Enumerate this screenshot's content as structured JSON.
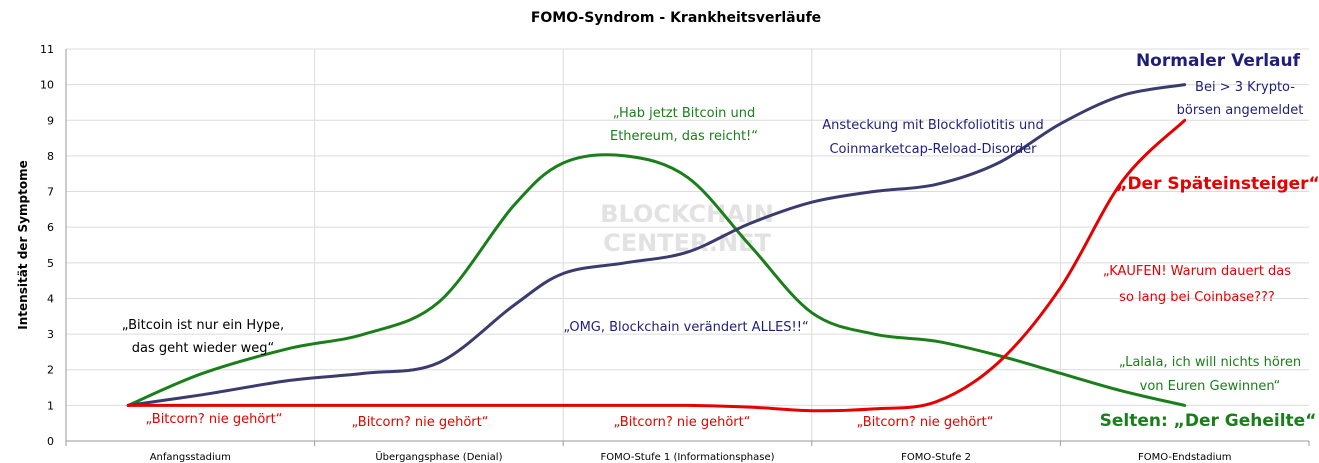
{
  "chart_data": {
    "type": "line",
    "title": "FOMO-Syndrom - Krankheitsverläufe",
    "xlabel": "",
    "ylabel": "Intensität der Symptome",
    "ylim": [
      0,
      11
    ],
    "yticks": [
      0,
      1,
      2,
      3,
      4,
      5,
      6,
      7,
      8,
      9,
      10,
      11
    ],
    "categories": [
      "Anfangsstadium",
      "Übergangsphase (Denial)",
      "FOMO-Stufe 1 (Informationsphase)",
      "FOMO-Stufe 2",
      "FOMO-Endstadium"
    ],
    "grid": true,
    "series": [
      {
        "color": "#1a7f1a",
        "points": [
          [
            0.25,
            1
          ],
          [
            0.55,
            1.9
          ],
          [
            0.9,
            2.6
          ],
          [
            1.2,
            3
          ],
          [
            1.5,
            3.9
          ],
          [
            1.8,
            6.6
          ],
          [
            2.0,
            7.8
          ],
          [
            2.25,
            8
          ],
          [
            2.5,
            7.4
          ],
          [
            2.75,
            5.5
          ],
          [
            3.0,
            3.6
          ],
          [
            3.25,
            3
          ],
          [
            3.5,
            2.8
          ],
          [
            3.75,
            2.4
          ],
          [
            4.0,
            1.9
          ],
          [
            4.25,
            1.4
          ],
          [
            4.5,
            1
          ]
        ]
      },
      {
        "color": "#3b3b6e",
        "points": [
          [
            0.25,
            1
          ],
          [
            0.55,
            1.3
          ],
          [
            0.9,
            1.7
          ],
          [
            1.2,
            1.9
          ],
          [
            1.5,
            2.2
          ],
          [
            1.8,
            3.8
          ],
          [
            2.0,
            4.7
          ],
          [
            2.25,
            5
          ],
          [
            2.5,
            5.3
          ],
          [
            2.75,
            6.1
          ],
          [
            3.0,
            6.7
          ],
          [
            3.25,
            7
          ],
          [
            3.5,
            7.2
          ],
          [
            3.75,
            7.8
          ],
          [
            4.0,
            8.9
          ],
          [
            4.25,
            9.7
          ],
          [
            4.5,
            10
          ]
        ]
      },
      {
        "color": "#e60000",
        "points": [
          [
            0.25,
            1
          ],
          [
            1.2,
            1
          ],
          [
            2.0,
            1
          ],
          [
            2.5,
            1
          ],
          [
            2.75,
            0.95
          ],
          [
            3.0,
            0.85
          ],
          [
            3.25,
            0.9
          ],
          [
            3.5,
            1.1
          ],
          [
            3.75,
            2.2
          ],
          [
            4.0,
            4.3
          ],
          [
            4.25,
            7.3
          ],
          [
            4.5,
            9
          ]
        ]
      }
    ],
    "annotations": [
      {
        "text": "Normaler Verlauf",
        "color": "#1f1f7a",
        "bold": true
      },
      {
        "text": "Bei > 3 Krypto-",
        "color": "#1f1f7a"
      },
      {
        "text": "börsen angemeldet",
        "color": "#1f1f7a"
      },
      {
        "text": "„Hab jetzt Bitcoin und",
        "color": "#1a7f1a"
      },
      {
        "text": "Ethereum, das reicht!“",
        "color": "#1a7f1a"
      },
      {
        "text": "Ansteckung mit Blockfoliotitis und",
        "color": "#1f1f7a"
      },
      {
        "text": "Coinmarketcap-Reload-Disorder",
        "color": "#1f1f7a"
      },
      {
        "text": "„Der Späteinsteiger“",
        "color": "#e60000",
        "bold": true
      },
      {
        "text": "„KAUFEN! Warum dauert das",
        "color": "#e60000"
      },
      {
        "text": "so lang bei Coinbase???",
        "color": "#e60000"
      },
      {
        "text": "„Bitcoin ist nur ein Hype,",
        "color": "#000000"
      },
      {
        "text": "das geht wieder weg“",
        "color": "#000000"
      },
      {
        "text": "„OMG, Blockchain verändert ALLES!!“",
        "color": "#1f1f7a"
      },
      {
        "text": "„Lalala, ich will nichts hören",
        "color": "#1a7f1a"
      },
      {
        "text": "von Euren Gewinnen“",
        "color": "#1a7f1a"
      },
      {
        "text": "„Bitcorn? nie gehört“",
        "color": "#e60000"
      },
      {
        "text": "„Bitcorn? nie gehört“",
        "color": "#e60000"
      },
      {
        "text": "„Bitcorn? nie gehört“",
        "color": "#e60000"
      },
      {
        "text": "„Bitcorn? nie gehört“",
        "color": "#e60000"
      },
      {
        "text": "Selten: „Der Geheilte“",
        "color": "#1a7f1a",
        "bold": true
      }
    ],
    "watermark": [
      "BLOCKCHAIN",
      "CENTER.NET"
    ]
  }
}
